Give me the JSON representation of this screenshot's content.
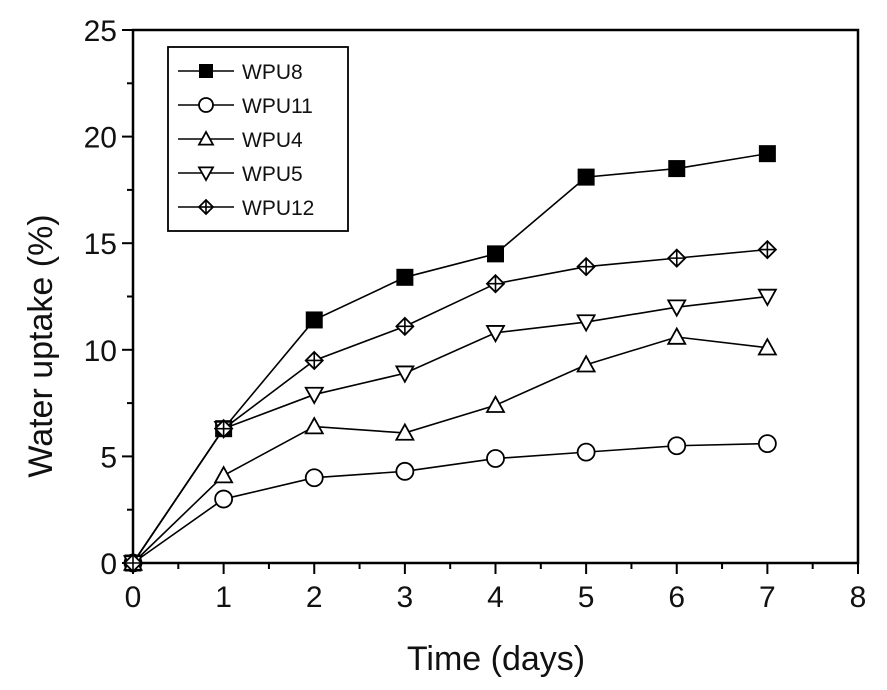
{
  "chart_data": {
    "type": "line",
    "title": "",
    "xlabel": "Time (days)",
    "ylabel": "Water uptake (%)",
    "xlim": [
      0,
      8
    ],
    "ylim": [
      0,
      25
    ],
    "xticks": [
      "0",
      "1",
      "2",
      "3",
      "4",
      "5",
      "6",
      "7",
      "8"
    ],
    "yticks": [
      "0",
      "5",
      "10",
      "15",
      "20",
      "25"
    ],
    "grid": false,
    "legend_position": "top-left",
    "x": [
      0,
      1,
      2,
      3,
      4,
      5,
      6,
      7
    ],
    "series": [
      {
        "name": "WPU8",
        "marker": "filled-square",
        "values": [
          0,
          6.3,
          11.4,
          13.4,
          14.5,
          18.1,
          18.5,
          19.2
        ]
      },
      {
        "name": "WPU11",
        "marker": "open-circle",
        "values": [
          0,
          3.0,
          4.0,
          4.3,
          4.9,
          5.2,
          5.5,
          5.6
        ]
      },
      {
        "name": "WPU4",
        "marker": "open-triangle-up",
        "values": [
          0,
          4.1,
          6.4,
          6.1,
          7.4,
          9.3,
          10.6,
          10.1
        ]
      },
      {
        "name": "WPU5",
        "marker": "open-triangle-down",
        "values": [
          0,
          6.3,
          7.9,
          8.9,
          10.8,
          11.3,
          12.0,
          12.5
        ]
      },
      {
        "name": "WPU12",
        "marker": "crossed-diamond",
        "values": [
          0,
          6.3,
          9.5,
          11.1,
          13.1,
          13.9,
          14.3,
          14.7
        ]
      }
    ]
  }
}
